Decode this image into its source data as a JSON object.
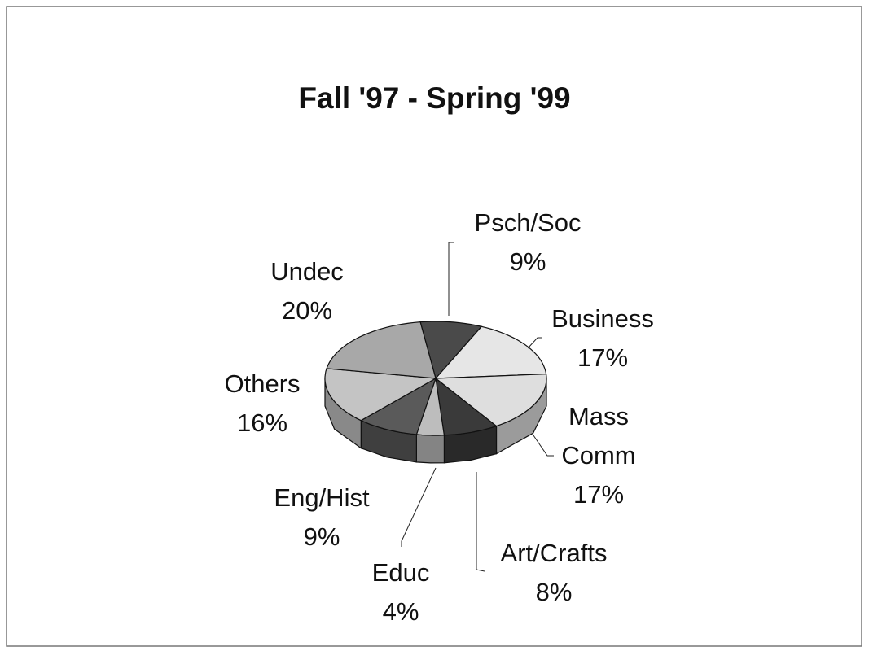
{
  "chart_data": {
    "type": "pie",
    "title": "Fall '97 - Spring '99",
    "categories": [
      "Psch/Soc",
      "Business",
      "Mass Comm",
      "Art/Crafts",
      "Educ",
      "Eng/Hist",
      "Others",
      "Undec"
    ],
    "values": [
      9,
      17,
      17,
      8,
      4,
      9,
      16,
      20
    ],
    "value_labels": [
      "9%",
      "17%",
      "17%",
      "8%",
      "4%",
      "9%",
      "16%",
      "20%"
    ],
    "colors": [
      "#4a4a4a",
      "#e6e6e6",
      "#dedede",
      "#3a3a3a",
      "#bdbdbd",
      "#5a5a5a",
      "#c4c4c4",
      "#a8a8a8"
    ]
  }
}
